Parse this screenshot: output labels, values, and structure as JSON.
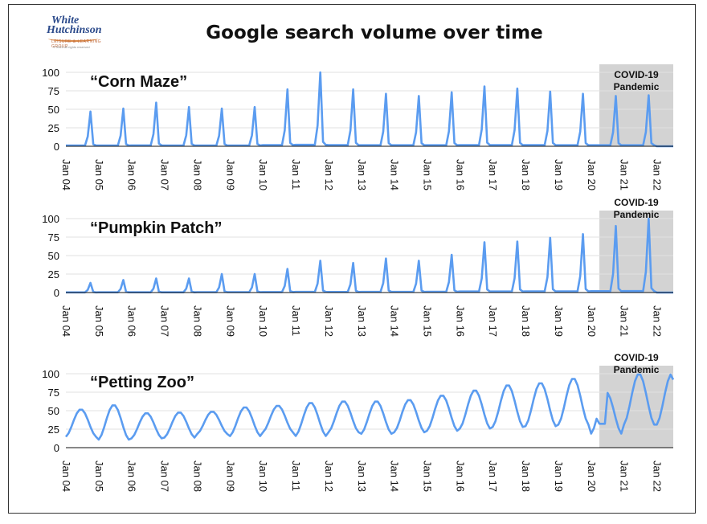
{
  "page_title": "Google search volume over time",
  "logo": {
    "line1": "White",
    "line2": "Hutchinson",
    "line3": "LEISURE & LEARNING GROUP",
    "line4": "© 2021 all rights reserved"
  },
  "colors": {
    "line": "#5b9cf0",
    "shade": "#d3d3d3",
    "axis": "#111111"
  },
  "chart_data": [
    {
      "type": "line",
      "title": "“Corn Maze”",
      "annotation": [
        "COVID-19",
        "Pandemic"
      ],
      "ylim": [
        0,
        100
      ],
      "yticks": [
        0,
        25,
        50,
        75,
        100
      ],
      "xlim": [
        "2004-01",
        "2022-07"
      ],
      "xtick_labels": [
        "Jan 04",
        "Jan 05",
        "Jan 06",
        "Jan 07",
        "Jan 08",
        "Jan 09",
        "Jan 10",
        "Jan 11",
        "Jan 12",
        "Jan 13",
        "Jan 14",
        "Jan 15",
        "Jan 16",
        "Jan 17",
        "Jan 18",
        "Jan 19",
        "Jan 20",
        "Jan 21",
        "Jan 22"
      ],
      "shaded_region": [
        "2020-04",
        "2022-07"
      ],
      "pattern": "seasonal peak each October, near zero rest of year",
      "annual_october_peaks": [
        {
          "year": 2004,
          "value": 47
        },
        {
          "year": 2005,
          "value": 51
        },
        {
          "year": 2006,
          "value": 59
        },
        {
          "year": 2007,
          "value": 53
        },
        {
          "year": 2008,
          "value": 51
        },
        {
          "year": 2009,
          "value": 53
        },
        {
          "year": 2010,
          "value": 77
        },
        {
          "year": 2011,
          "value": 100
        },
        {
          "year": 2012,
          "value": 77
        },
        {
          "year": 2013,
          "value": 71
        },
        {
          "year": 2014,
          "value": 68
        },
        {
          "year": 2015,
          "value": 73
        },
        {
          "year": 2016,
          "value": 81
        },
        {
          "year": 2017,
          "value": 78
        },
        {
          "year": 2018,
          "value": 74
        },
        {
          "year": 2019,
          "value": 71
        },
        {
          "year": 2020,
          "value": 68
        },
        {
          "year": 2021,
          "value": 69
        }
      ]
    },
    {
      "type": "line",
      "title": "“Pumpkin Patch”",
      "annotation": [
        "COVID-19",
        "Pandemic"
      ],
      "ylim": [
        0,
        100
      ],
      "yticks": [
        0,
        25,
        50,
        75,
        100
      ],
      "xlim": [
        "2004-01",
        "2022-07"
      ],
      "xtick_labels": [
        "Jan 04",
        "Jan 05",
        "Jan 06",
        "Jan 07",
        "Jan 08",
        "Jan 09",
        "Jan 10",
        "Jan 11",
        "Jan 12",
        "Jan 13",
        "Jan 14",
        "Jan 15",
        "Jan 16",
        "Jan 17",
        "Jan 18",
        "Jan 19",
        "Jan 20",
        "Jan 21",
        "Jan 22"
      ],
      "shaded_region": [
        "2020-04",
        "2022-07"
      ],
      "pattern": "seasonal peak each October, near zero rest of year",
      "annual_october_peaks": [
        {
          "year": 2004,
          "value": 13
        },
        {
          "year": 2005,
          "value": 17
        },
        {
          "year": 2006,
          "value": 19
        },
        {
          "year": 2007,
          "value": 19
        },
        {
          "year": 2008,
          "value": 25
        },
        {
          "year": 2009,
          "value": 25
        },
        {
          "year": 2010,
          "value": 32
        },
        {
          "year": 2011,
          "value": 43
        },
        {
          "year": 2012,
          "value": 40
        },
        {
          "year": 2013,
          "value": 46
        },
        {
          "year": 2014,
          "value": 43
        },
        {
          "year": 2015,
          "value": 51
        },
        {
          "year": 2016,
          "value": 68
        },
        {
          "year": 2017,
          "value": 69
        },
        {
          "year": 2018,
          "value": 74
        },
        {
          "year": 2019,
          "value": 79
        },
        {
          "year": 2020,
          "value": 90
        },
        {
          "year": 2021,
          "value": 100
        }
      ]
    },
    {
      "type": "line",
      "title": "“Petting Zoo”",
      "annotation": [
        "COVID-19",
        "Pandemic"
      ],
      "ylim": [
        0,
        100
      ],
      "yticks": [
        0,
        25,
        50,
        75,
        100
      ],
      "xlim": [
        "2004-01",
        "2022-07"
      ],
      "xtick_labels": [
        "Jan 04",
        "Jan 05",
        "Jan 06",
        "Jan 07",
        "Jan 08",
        "Jan 09",
        "Jan 10",
        "Jan 11",
        "Jan 12",
        "Jan 13",
        "Jan 14",
        "Jan 15",
        "Jan 16",
        "Jan 17",
        "Jan 18",
        "Jan 19",
        "Jan 20",
        "Jan 21",
        "Jan 22"
      ],
      "shaded_region": [
        "2020-04",
        "2022-07"
      ],
      "pattern": "seasonal, low in December/January, high in spring and summer",
      "annual_low_high": [
        {
          "year": 2004,
          "low": 14,
          "high": 52
        },
        {
          "year": 2005,
          "low": 10,
          "high": 58
        },
        {
          "year": 2006,
          "low": 12,
          "high": 47
        },
        {
          "year": 2007,
          "low": 13,
          "high": 48
        },
        {
          "year": 2008,
          "low": 18,
          "high": 49
        },
        {
          "year": 2009,
          "low": 15,
          "high": 55
        },
        {
          "year": 2010,
          "low": 20,
          "high": 57
        },
        {
          "year": 2011,
          "low": 15,
          "high": 61
        },
        {
          "year": 2012,
          "low": 20,
          "high": 63
        },
        {
          "year": 2013,
          "low": 18,
          "high": 63
        },
        {
          "year": 2014,
          "low": 20,
          "high": 65
        },
        {
          "year": 2015,
          "low": 22,
          "high": 71
        },
        {
          "year": 2016,
          "low": 25,
          "high": 78
        },
        {
          "year": 2017,
          "low": 27,
          "high": 85
        },
        {
          "year": 2018,
          "low": 28,
          "high": 88
        },
        {
          "year": 2019,
          "low": 30,
          "high": 94
        },
        {
          "year": 2020,
          "low": 18,
          "high": 75
        },
        {
          "year": 2021,
          "low": 30,
          "high": 100
        }
      ],
      "final_value": 92
    }
  ]
}
